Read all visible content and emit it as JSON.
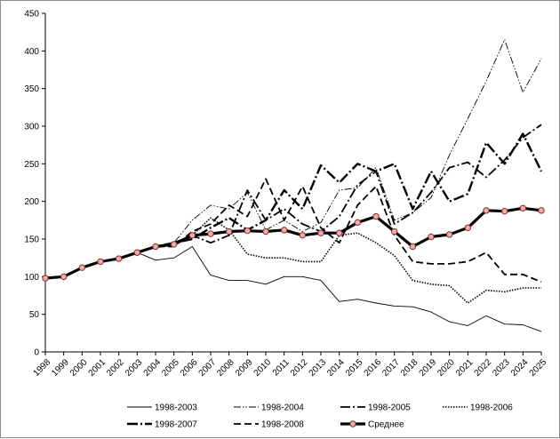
{
  "chart_data": {
    "type": "line",
    "title": "",
    "xlabel": "",
    "ylabel": "",
    "ylim": [
      0,
      450
    ],
    "yticks": [
      0,
      50,
      100,
      150,
      200,
      250,
      300,
      350,
      400,
      450
    ],
    "grid": false,
    "legend_position": "bottom",
    "x": [
      "1998",
      "1999",
      "2000",
      "2001",
      "2002",
      "2003",
      "2004",
      "2005",
      "2006",
      "2007",
      "2008",
      "2009",
      "2010",
      "2011",
      "2012",
      "2013",
      "2014",
      "2015",
      "2016",
      "2017",
      "2018",
      "2019",
      "2020",
      "2021",
      "2022",
      "2023",
      "2024",
      "2025"
    ],
    "series": [
      {
        "name": "1998-2003",
        "style": "solid-thin",
        "values": [
          98,
          100,
          112,
          120,
          124,
          132,
          122,
          125,
          140,
          102,
          95,
          95,
          90,
          100,
          100,
          95,
          67,
          70,
          65,
          61,
          60,
          53,
          40,
          35,
          48,
          37,
          36,
          27
        ]
      },
      {
        "name": "1998-2004",
        "style": "dashdotdot",
        "values": [
          98,
          100,
          112,
          120,
          124,
          132,
          140,
          145,
          175,
          195,
          190,
          212,
          162,
          175,
          160,
          172,
          215,
          218,
          245,
          175,
          185,
          205,
          262,
          310,
          360,
          415,
          345,
          390
        ]
      },
      {
        "name": "1998-2005",
        "style": "dashdot",
        "values": [
          98,
          100,
          112,
          120,
          124,
          132,
          140,
          145,
          155,
          145,
          155,
          215,
          175,
          190,
          170,
          160,
          180,
          222,
          240,
          170,
          185,
          212,
          245,
          252,
          232,
          255,
          285,
          302
        ]
      },
      {
        "name": "1998-2006",
        "style": "dotted",
        "values": [
          98,
          100,
          112,
          120,
          124,
          132,
          140,
          145,
          155,
          178,
          162,
          130,
          125,
          125,
          120,
          120,
          155,
          158,
          145,
          128,
          95,
          90,
          88,
          65,
          82,
          80,
          85,
          85
        ]
      },
      {
        "name": "1998-2007",
        "style": "longdashdot-thick",
        "values": [
          98,
          100,
          112,
          120,
          124,
          132,
          140,
          145,
          150,
          165,
          178,
          162,
          175,
          215,
          190,
          248,
          225,
          250,
          240,
          250,
          190,
          240,
          200,
          210,
          278,
          250,
          290,
          240
        ]
      },
      {
        "name": "1998-2008",
        "style": "dashed",
        "values": [
          98,
          100,
          112,
          120,
          124,
          132,
          140,
          140,
          160,
          170,
          195,
          180,
          230,
          175,
          220,
          165,
          145,
          195,
          220,
          155,
          120,
          117,
          117,
          120,
          132,
          103,
          103,
          93
        ]
      },
      {
        "name": "Среднее",
        "style": "thick-markers",
        "values": [
          98,
          100,
          112,
          120,
          124,
          132,
          140,
          143,
          155,
          157,
          160,
          161,
          160,
          162,
          155,
          158,
          158,
          172,
          180,
          160,
          140,
          153,
          156,
          165,
          188,
          187,
          191,
          188
        ]
      }
    ]
  }
}
